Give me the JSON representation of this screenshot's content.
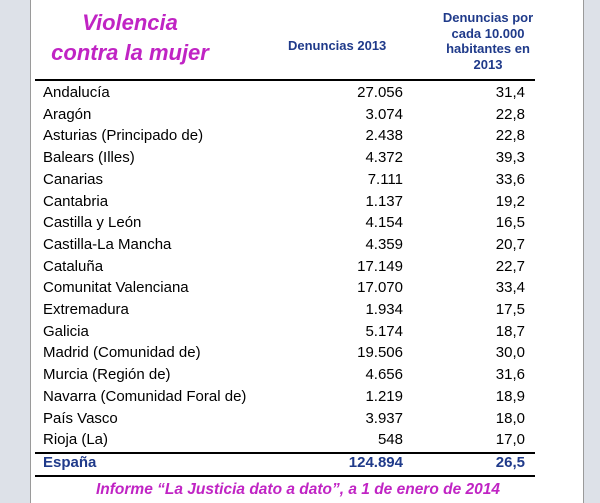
{
  "header": {
    "title_line1": "Violencia",
    "title_line2": "contra la mujer",
    "col2": "Denuncias 2013",
    "col3_line1": "Denuncias por",
    "col3_line2": "cada 10.000",
    "col3_line3": "habitantes en",
    "col3_line4": "2013"
  },
  "rows": [
    {
      "name": "Andalucía",
      "denuncias": "27.056",
      "tasa": "31,4"
    },
    {
      "name": "Aragón",
      "denuncias": "3.074",
      "tasa": "22,8"
    },
    {
      "name": "Asturias (Principado de)",
      "denuncias": "2.438",
      "tasa": "22,8"
    },
    {
      "name": "Balears (Illes)",
      "denuncias": "4.372",
      "tasa": "39,3"
    },
    {
      "name": "Canarias",
      "denuncias": "7.111",
      "tasa": "33,6"
    },
    {
      "name": "Cantabria",
      "denuncias": "1.137",
      "tasa": "19,2"
    },
    {
      "name": "Castilla y León",
      "denuncias": "4.154",
      "tasa": "16,5"
    },
    {
      "name": "Castilla-La Mancha",
      "denuncias": "4.359",
      "tasa": "20,7"
    },
    {
      "name": "Cataluña",
      "denuncias": "17.149",
      "tasa": "22,7"
    },
    {
      "name": "Comunitat Valenciana",
      "denuncias": "17.070",
      "tasa": "33,4"
    },
    {
      "name": "Extremadura",
      "denuncias": "1.934",
      "tasa": "17,5"
    },
    {
      "name": "Galicia",
      "denuncias": "5.174",
      "tasa": "18,7"
    },
    {
      "name": "Madrid (Comunidad de)",
      "denuncias": "19.506",
      "tasa": "30,0"
    },
    {
      "name": "Murcia (Región de)",
      "denuncias": "4.656",
      "tasa": "31,6"
    },
    {
      "name": "Navarra (Comunidad Foral de)",
      "denuncias": "1.219",
      "tasa": "18,9"
    },
    {
      "name": "País Vasco",
      "denuncias": "3.937",
      "tasa": "18,0"
    },
    {
      "name": "Rioja (La)",
      "denuncias": "548",
      "tasa": "17,0"
    }
  ],
  "total": {
    "name": "España",
    "denuncias": "124.894",
    "tasa": "26,5"
  },
  "footer": "Informe “La Justicia dato a dato”, a 1 de enero de 2014",
  "colors": {
    "title": "#c024c4",
    "header": "#1f3a8a"
  }
}
